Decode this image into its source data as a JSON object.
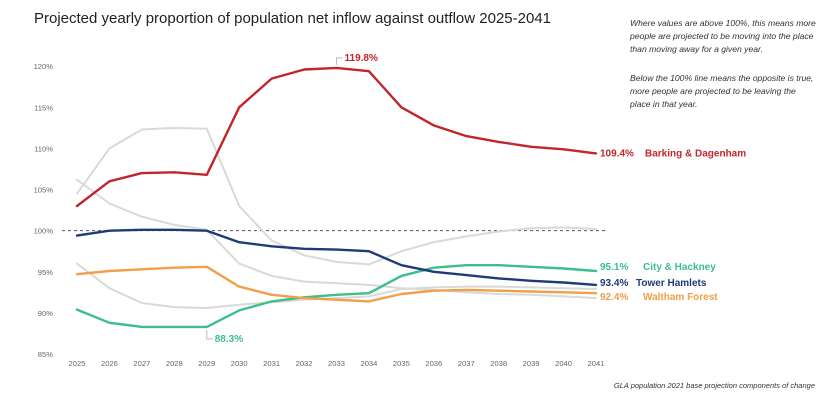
{
  "title": "Projected yearly proportion of population net inflow against outflow 2025-2041",
  "note_1": "Where values are above 100%, this means more people are projected to be moving into the place than moving away for a given year.",
  "note_2": "Below the 100% line means the opposite is true, more people are projected to be leaving the place in that year.",
  "source": "GLA population 2021 base projection components of change",
  "chart_data": {
    "type": "line",
    "x": [
      "2025",
      "2026",
      "2027",
      "2028",
      "2029",
      "2030",
      "2031",
      "2032",
      "2033",
      "2034",
      "2035",
      "2036",
      "2037",
      "2038",
      "2039",
      "2040",
      "2041"
    ],
    "ylim": [
      85,
      121
    ],
    "yticks": [
      "85%",
      "90%",
      "95%",
      "100%",
      "105%",
      "110%",
      "115%",
      "120%"
    ],
    "ytick_values": [
      85,
      90,
      95,
      100,
      105,
      110,
      115,
      120
    ],
    "reference_line": 100,
    "grid": false,
    "series": [
      {
        "name": "Barking & Dagenham",
        "color": "#c0262b",
        "highlight": true,
        "values": [
          103.0,
          106.0,
          107.0,
          107.1,
          106.8,
          115.0,
          118.5,
          119.6,
          119.8,
          119.4,
          115.0,
          112.8,
          111.5,
          110.8,
          110.2,
          109.9,
          109.4
        ],
        "end_label": "109.4%",
        "annotation": "119.8%"
      },
      {
        "name": "City & Hackney",
        "color": "#3cbf8c",
        "highlight": true,
        "values": [
          90.4,
          88.8,
          88.3,
          88.3,
          88.3,
          90.3,
          91.4,
          91.9,
          92.2,
          92.4,
          94.5,
          95.5,
          95.8,
          95.8,
          95.6,
          95.4,
          95.1
        ],
        "end_label": "95.1%",
        "annotation": "88.3%"
      },
      {
        "name": "Tower Hamlets",
        "color": "#1f3a78",
        "highlight": true,
        "values": [
          99.4,
          100.0,
          100.1,
          100.1,
          100.0,
          98.6,
          98.1,
          97.8,
          97.7,
          97.5,
          95.8,
          95.0,
          94.6,
          94.2,
          93.9,
          93.7,
          93.4
        ],
        "end_label": "93.4%"
      },
      {
        "name": "Waltham Forest",
        "color": "#f0a04b",
        "highlight": true,
        "values": [
          94.7,
          95.1,
          95.3,
          95.5,
          95.6,
          93.2,
          92.2,
          91.8,
          91.6,
          91.4,
          92.3,
          92.7,
          92.8,
          92.7,
          92.6,
          92.5,
          92.4
        ],
        "end_label": "92.4%"
      },
      {
        "name": "",
        "color": "#d9d9d9",
        "highlight": false,
        "values": [
          104.5,
          110.0,
          112.3,
          112.5,
          112.4,
          103.0,
          98.8,
          97.0,
          96.2,
          95.9,
          97.5,
          98.6,
          99.3,
          99.9,
          100.3,
          100.4,
          100.2
        ]
      },
      {
        "name": "",
        "color": "#d9d9d9",
        "highlight": false,
        "values": [
          106.2,
          103.3,
          101.7,
          100.7,
          100.1,
          96.0,
          94.5,
          93.8,
          93.6,
          93.4,
          93.0,
          92.8,
          92.5,
          92.3,
          92.2,
          92.0,
          91.8
        ]
      },
      {
        "name": "",
        "color": "#d9d9d9",
        "highlight": false,
        "values": [
          96.0,
          93.0,
          91.2,
          90.7,
          90.6,
          91.0,
          91.3,
          91.6,
          91.8,
          92.0,
          92.9,
          93.1,
          93.2,
          93.2,
          93.1,
          93.0,
          92.9
        ]
      }
    ]
  }
}
